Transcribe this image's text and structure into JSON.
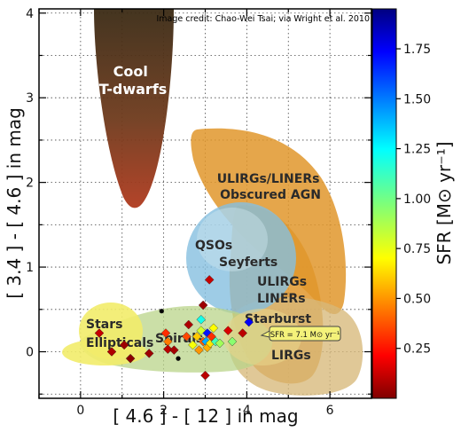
{
  "chart_data": {
    "type": "scatter",
    "credit": "Image credit: Chao-Wei Tsai; via Wright et al. 2010",
    "xlabel": "[ 4.6 ] - [ 12 ] in mag",
    "ylabel": "[ 3.4 ] - [ 4.6 ] in mag",
    "xlim": [
      -1.0,
      7.0
    ],
    "ylim": [
      -0.55,
      4.05
    ],
    "x_ticks": [
      0,
      2,
      4,
      6
    ],
    "y_ticks": [
      0,
      1,
      2,
      3,
      4
    ],
    "grid": true,
    "colorbar": {
      "label": "SFR [M⊙ yr⁻¹]",
      "range": [
        0.0,
        1.95
      ],
      "ticks": [
        "0.25",
        "0.50",
        "0.75",
        "1.00",
        "1.25",
        "1.50",
        "1.75"
      ],
      "tick_values": [
        0.25,
        0.5,
        0.75,
        1.0,
        1.25,
        1.5,
        1.75
      ],
      "colormap": "jet"
    },
    "regions": [
      {
        "label": "Cool\nT-dwarfs",
        "color": "#7a2a10"
      },
      {
        "label": "ULIRGs/LINERs\nObscured AGN",
        "color": "#e0962c"
      },
      {
        "label": "QSOs",
        "color": "#86bfe0"
      },
      {
        "label": "Seyferts",
        "color": "#86bfe0"
      },
      {
        "label": "ULIRGs\nLINERs",
        "color": "#e0962c"
      },
      {
        "label": "Starburst",
        "color": "#d7b97a"
      },
      {
        "label": "LIRGs",
        "color": "#d7b97a"
      },
      {
        "label": "Spirals",
        "color": "#b9d48a"
      },
      {
        "label": "Stars",
        "color": "#f2ec6a"
      },
      {
        "label": "Ellipticals",
        "color": "#f2ec6a"
      }
    ],
    "annotation": {
      "text": "SFR = 7.1 M⊙ yr⁻¹",
      "x": 3.95,
      "y": 0.21
    },
    "points": [
      {
        "x": 0.45,
        "y": 0.22,
        "sfr": 0.12
      },
      {
        "x": 0.75,
        "y": 0.0,
        "sfr": 0.08
      },
      {
        "x": 1.05,
        "y": 0.08,
        "sfr": 0.05
      },
      {
        "x": 1.2,
        "y": -0.08,
        "sfr": 0.02
      },
      {
        "x": 1.65,
        "y": -0.02,
        "sfr": 0.05
      },
      {
        "x": 1.95,
        "y": 0.48,
        "sfr": -1
      },
      {
        "x": 2.05,
        "y": 0.22,
        "sfr": 0.3
      },
      {
        "x": 2.1,
        "y": 0.12,
        "sfr": 0.45
      },
      {
        "x": 2.1,
        "y": 0.03,
        "sfr": 0.1
      },
      {
        "x": 2.25,
        "y": 0.02,
        "sfr": 0.06
      },
      {
        "x": 2.35,
        "y": -0.08,
        "sfr": -1
      },
      {
        "x": 2.55,
        "y": 0.18,
        "sfr": 0.35
      },
      {
        "x": 2.6,
        "y": 0.32,
        "sfr": 0.08
      },
      {
        "x": 2.7,
        "y": 0.08,
        "sfr": 0.72
      },
      {
        "x": 2.8,
        "y": 0.18,
        "sfr": 0.6
      },
      {
        "x": 2.85,
        "y": 0.02,
        "sfr": 0.5
      },
      {
        "x": 2.9,
        "y": 0.38,
        "sfr": 1.2
      },
      {
        "x": 2.9,
        "y": 0.25,
        "sfr": 0.8
      },
      {
        "x": 2.95,
        "y": 0.12,
        "sfr": 0.4
      },
      {
        "x": 2.95,
        "y": 0.55,
        "sfr": 0.05
      },
      {
        "x": 3.0,
        "y": -0.28,
        "sfr": 0.1
      },
      {
        "x": 3.02,
        "y": 0.12,
        "sfr": 1.4
      },
      {
        "x": 3.05,
        "y": 0.22,
        "sfr": 1.7
      },
      {
        "x": 3.05,
        "y": 0.05,
        "sfr": 0.55
      },
      {
        "x": 3.1,
        "y": 0.85,
        "sfr": 0.12
      },
      {
        "x": 3.12,
        "y": 0.1,
        "sfr": 0.65
      },
      {
        "x": 3.15,
        "y": 0.18,
        "sfr": 0.3
      },
      {
        "x": 3.2,
        "y": 0.28,
        "sfr": 0.7
      },
      {
        "x": 3.25,
        "y": 0.12,
        "sfr": 1.1
      },
      {
        "x": 3.35,
        "y": 0.1,
        "sfr": 0.9
      },
      {
        "x": 3.55,
        "y": 0.25,
        "sfr": 0.15
      },
      {
        "x": 3.65,
        "y": 0.12,
        "sfr": 0.95
      },
      {
        "x": 3.9,
        "y": 0.22,
        "sfr": 0.1
      },
      {
        "x": 4.05,
        "y": 0.35,
        "sfr": 1.75
      }
    ]
  }
}
